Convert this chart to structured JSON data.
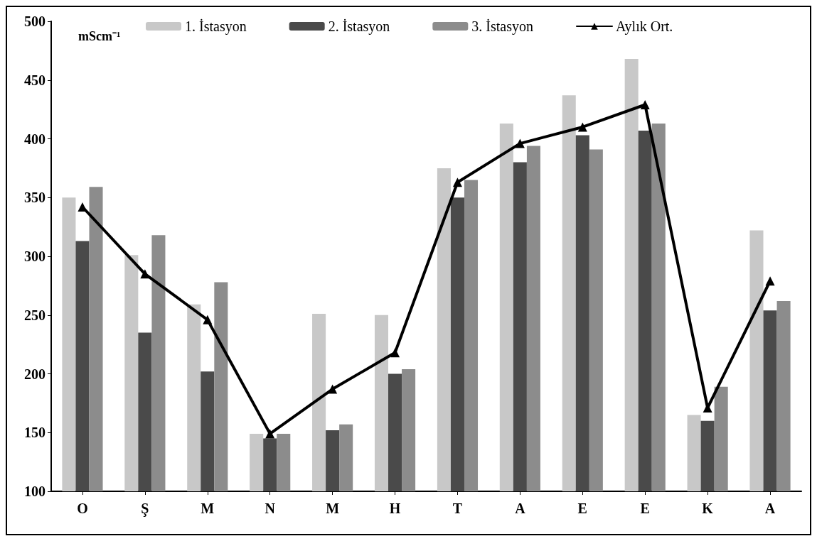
{
  "chart_data": {
    "type": "bar",
    "ylabel": "mScm⁻¹",
    "categories": [
      "O",
      "Ş",
      "M",
      "N",
      "M",
      "H",
      "T",
      "A",
      "E",
      "E",
      "K",
      "A"
    ],
    "series": [
      {
        "name": "1. İstasyon",
        "color": "#c8c8c8",
        "values": [
          350,
          301,
          259,
          149,
          251,
          250,
          375,
          413,
          437,
          468,
          165,
          322
        ]
      },
      {
        "name": "2. İstasyon",
        "color": "#4a4a4a",
        "values": [
          313,
          235,
          202,
          145,
          152,
          200,
          350,
          380,
          403,
          407,
          160,
          254
        ]
      },
      {
        "name": "3. İstasyon",
        "color": "#8c8c8c",
        "values": [
          359,
          318,
          278,
          149,
          157,
          204,
          365,
          394,
          391,
          413,
          189,
          262
        ]
      },
      {
        "name": "Aylık Ort.",
        "type": "line",
        "color": "#000000",
        "marker": "triangle",
        "line_style": "solid",
        "values": [
          342,
          285,
          246,
          149,
          187,
          218,
          363,
          396,
          410,
          429,
          171,
          279
        ]
      }
    ],
    "ylim": [
      100,
      500
    ],
    "yticks": [
      100,
      150,
      200,
      250,
      300,
      350,
      400,
      450,
      500
    ],
    "grid": false,
    "legend": "top"
  }
}
